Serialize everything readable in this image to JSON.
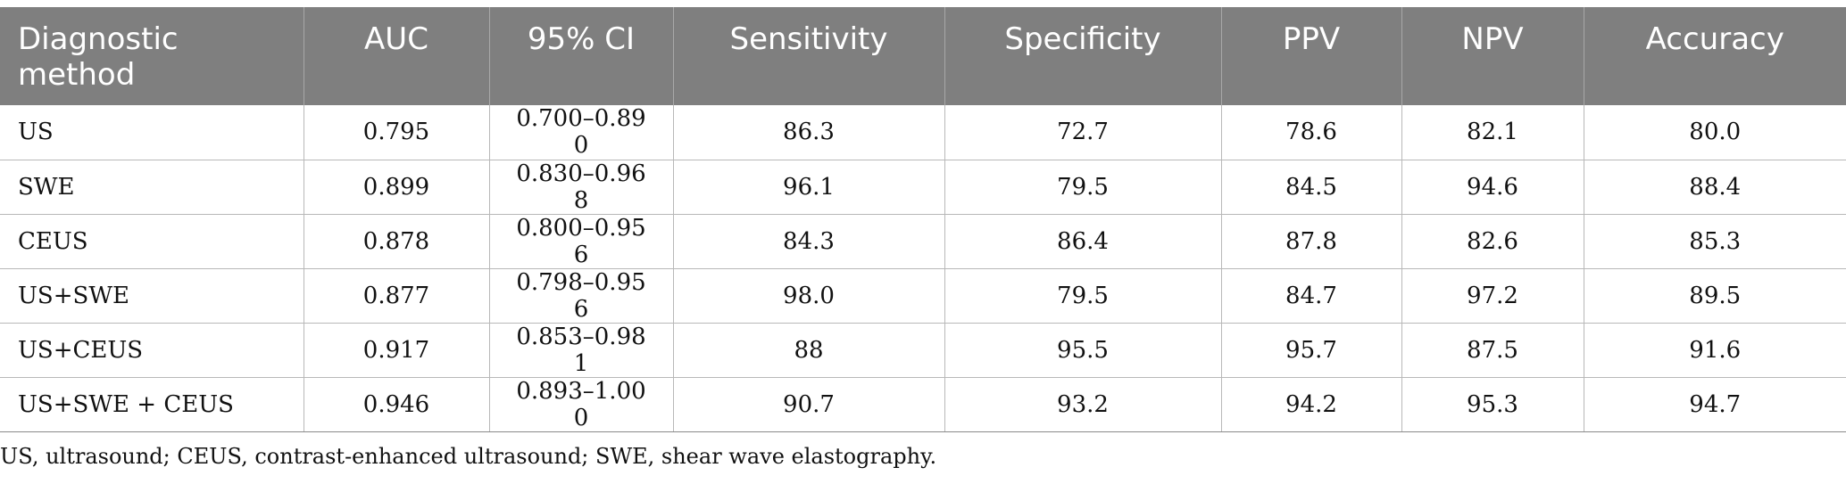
{
  "table": {
    "headers": [
      "Diagnostic method",
      "AUC",
      "95% CI",
      "Sensitivity",
      "Specificity",
      "PPV",
      "NPV",
      "Accuracy"
    ],
    "rows": [
      [
        "US",
        "0.795",
        "0.700–0.89 0",
        "86.3",
        "72.7",
        "78.6",
        "82.1",
        "80.0"
      ],
      [
        "SWE",
        "0.899",
        "0.830–0.96 8",
        "96.1",
        "79.5",
        "84.5",
        "94.6",
        "88.4"
      ],
      [
        "CEUS",
        "0.878",
        "0.800–0.95 6",
        "84.3",
        "86.4",
        "87.8",
        "82.6",
        "85.3"
      ],
      [
        "US+SWE",
        "0.877",
        "0.798–0.95 6",
        "98.0",
        "79.5",
        "84.7",
        "97.2",
        "89.5"
      ],
      [
        "US+CEUS",
        "0.917",
        "0.853–0.98 1",
        "88",
        "95.5",
        "95.7",
        "87.5",
        "91.6"
      ],
      [
        "US+SWE + CEUS",
        "0.946",
        "0.893–1.00 0",
        "90.7",
        "93.2",
        "94.2",
        "95.3",
        "94.7"
      ]
    ]
  },
  "footnote": "US, ultrasound; CEUS, contrast-enhanced ultrasound; SWE, shear wave elastography.",
  "colors": {
    "header_bg": "#7f7f7f",
    "header_text": "#ffffff",
    "border": "#b8b8b8"
  }
}
